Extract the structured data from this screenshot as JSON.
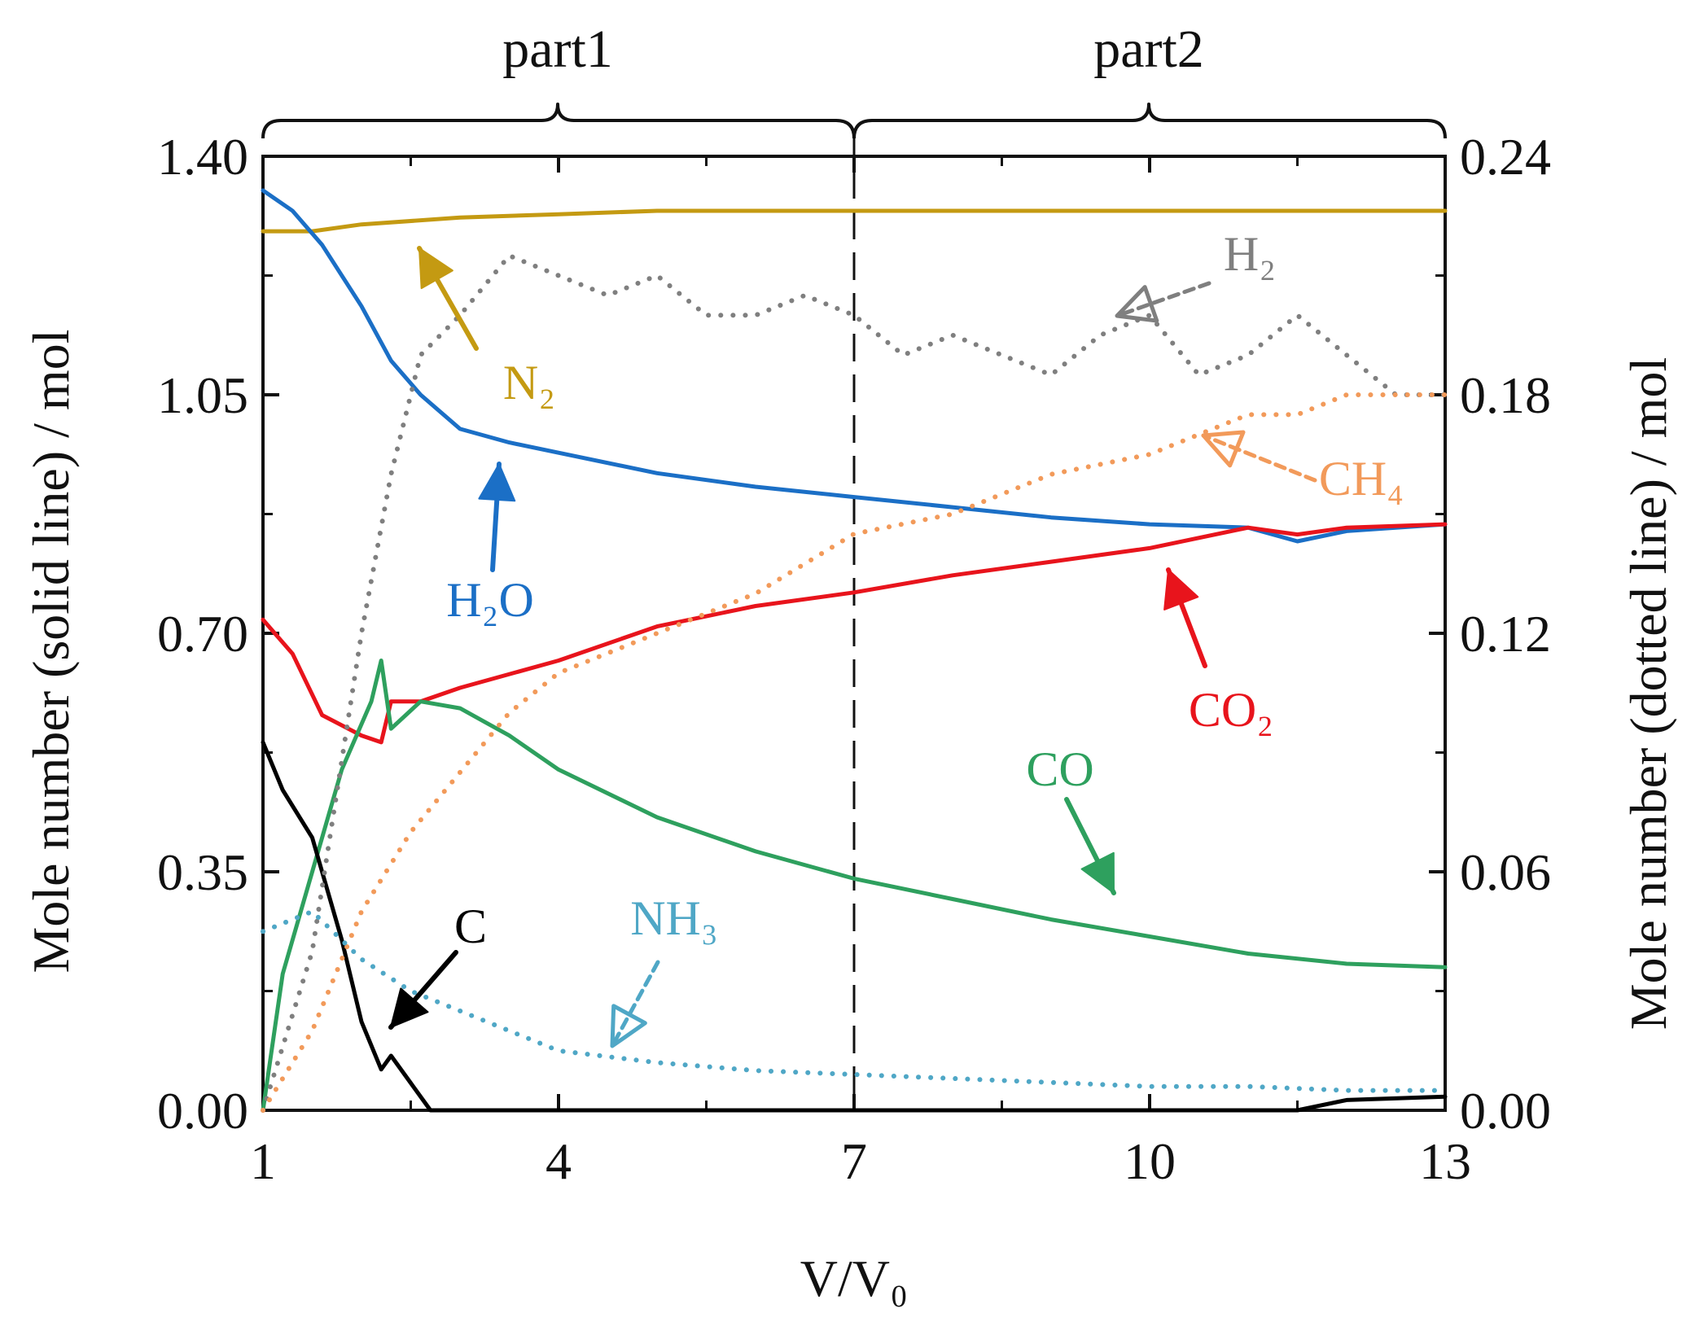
{
  "chart_data": {
    "type": "line",
    "xlabel": "V/V₀",
    "ylabel_left": "Mole number (solid line) / mol",
    "ylabel_right": "Mole number (dotted line) / mol",
    "xlim": [
      1,
      13
    ],
    "ylim_left": [
      0,
      1.4
    ],
    "ylim_right": [
      0,
      0.24
    ],
    "x_ticks": [
      1,
      4,
      7,
      10,
      13
    ],
    "y_left_ticks": [
      0.0,
      0.35,
      0.7,
      1.05,
      1.4
    ],
    "y_left_tick_labels": [
      "0.00",
      "0.35",
      "0.70",
      "1.05",
      "1.40"
    ],
    "y_right_ticks": [
      0.0,
      0.06,
      0.12,
      0.18,
      0.24
    ],
    "y_right_tick_labels": [
      "0.00",
      "0.06",
      "0.12",
      "0.18",
      "0.24"
    ],
    "divider_x": 7,
    "regions": [
      {
        "label": "part1",
        "x_range": [
          1,
          7
        ]
      },
      {
        "label": "part2",
        "x_range": [
          7,
          13
        ]
      }
    ],
    "series": [
      {
        "name": "N2",
        "style": "solid",
        "axis": "left",
        "color": "#c49a12",
        "x": [
          1,
          1.5,
          2,
          3,
          4,
          5,
          6,
          7,
          8,
          9,
          10,
          11,
          12,
          13
        ],
        "y": [
          1.29,
          1.29,
          1.3,
          1.31,
          1.315,
          1.32,
          1.32,
          1.32,
          1.32,
          1.32,
          1.32,
          1.32,
          1.32,
          1.32
        ]
      },
      {
        "name": "H2O",
        "style": "solid",
        "axis": "left",
        "color": "#1b6fc6",
        "x": [
          1,
          1.3,
          1.6,
          2,
          2.3,
          2.6,
          3,
          3.5,
          4,
          5,
          6,
          7,
          8,
          9,
          10,
          11,
          11.5,
          12,
          13
        ],
        "y": [
          1.35,
          1.32,
          1.27,
          1.18,
          1.1,
          1.05,
          1.0,
          0.98,
          0.965,
          0.935,
          0.915,
          0.9,
          0.885,
          0.87,
          0.86,
          0.855,
          0.835,
          0.85,
          0.86
        ]
      },
      {
        "name": "CO2",
        "style": "solid",
        "axis": "left",
        "color": "#e8141c",
        "x": [
          1,
          1.3,
          1.6,
          2,
          2.2,
          2.3,
          2.6,
          3,
          4,
          5,
          6,
          7,
          8,
          9,
          10,
          11,
          11.5,
          12,
          13
        ],
        "y": [
          0.72,
          0.67,
          0.58,
          0.55,
          0.54,
          0.6,
          0.6,
          0.62,
          0.66,
          0.71,
          0.74,
          0.76,
          0.785,
          0.805,
          0.825,
          0.855,
          0.845,
          0.855,
          0.86
        ]
      },
      {
        "name": "CO",
        "style": "solid",
        "axis": "left",
        "color": "#2ea05e",
        "x": [
          1,
          1.2,
          1.5,
          1.8,
          2.1,
          2.2,
          2.3,
          2.6,
          3,
          3.5,
          4,
          5,
          6,
          7,
          8,
          9,
          10,
          11,
          12,
          13
        ],
        "y": [
          0.0,
          0.2,
          0.35,
          0.5,
          0.6,
          0.66,
          0.56,
          0.6,
          0.59,
          0.55,
          0.5,
          0.43,
          0.38,
          0.34,
          0.31,
          0.28,
          0.255,
          0.23,
          0.215,
          0.21
        ]
      },
      {
        "name": "C",
        "style": "solid",
        "axis": "left",
        "color": "#000000",
        "x": [
          1,
          1.2,
          1.5,
          1.8,
          2.0,
          2.2,
          2.3,
          2.5,
          2.7,
          3,
          5,
          7,
          10,
          11.5,
          12,
          13
        ],
        "y": [
          0.54,
          0.47,
          0.4,
          0.25,
          0.13,
          0.06,
          0.08,
          0.04,
          0.0,
          0.0,
          0.0,
          0.0,
          0.0,
          0.0,
          0.015,
          0.02
        ]
      },
      {
        "name": "H2",
        "style": "dotted",
        "axis": "right",
        "color": "#7f7f7f",
        "x": [
          1,
          1.5,
          2,
          2.3,
          2.6,
          3,
          3.5,
          4,
          4.5,
          5,
          5.5,
          6,
          6.5,
          7,
          7.5,
          8,
          8.5,
          9,
          9.5,
          10,
          10.5,
          11,
          11.5,
          12,
          12.5,
          13
        ],
        "y": [
          0.0,
          0.04,
          0.12,
          0.16,
          0.19,
          0.2,
          0.215,
          0.21,
          0.205,
          0.21,
          0.2,
          0.2,
          0.205,
          0.2,
          0.19,
          0.195,
          0.19,
          0.185,
          0.195,
          0.2,
          0.185,
          0.19,
          0.2,
          0.19,
          0.18,
          0.18
        ]
      },
      {
        "name": "CH4",
        "style": "dotted",
        "axis": "right",
        "color": "#f29a5a",
        "x": [
          1,
          1.5,
          2,
          2.5,
          3,
          3.5,
          4,
          5,
          6,
          7,
          8,
          9,
          10,
          10.5,
          11,
          11.5,
          12,
          13
        ],
        "y": [
          0.0,
          0.02,
          0.05,
          0.07,
          0.085,
          0.1,
          0.11,
          0.12,
          0.13,
          0.145,
          0.15,
          0.16,
          0.165,
          0.17,
          0.175,
          0.175,
          0.18,
          0.18
        ]
      },
      {
        "name": "NH3",
        "style": "dotted",
        "axis": "right",
        "color": "#4fa7c6",
        "x": [
          1,
          1.5,
          2,
          2.5,
          3,
          3.5,
          4,
          5,
          6,
          7,
          8,
          9,
          10,
          11,
          12,
          13
        ],
        "y": [
          0.045,
          0.05,
          0.038,
          0.03,
          0.025,
          0.02,
          0.015,
          0.012,
          0.01,
          0.009,
          0.008,
          0.007,
          0.006,
          0.006,
          0.005,
          0.005
        ]
      }
    ],
    "annotations": [
      {
        "text": "N₂",
        "series": "N2",
        "color": "#c49a12"
      },
      {
        "text": "H₂O",
        "series": "H2O",
        "color": "#1b6fc6"
      },
      {
        "text": "CO₂",
        "series": "CO2",
        "color": "#e8141c"
      },
      {
        "text": "CO",
        "series": "CO",
        "color": "#2ea05e"
      },
      {
        "text": "C",
        "series": "C",
        "color": "#000000"
      },
      {
        "text": "H₂",
        "series": "H2",
        "color": "#7f7f7f"
      },
      {
        "text": "CH₄",
        "series": "CH4",
        "color": "#f29a5a"
      },
      {
        "text": "NH₃",
        "series": "NH3",
        "color": "#4fa7c6"
      }
    ]
  }
}
